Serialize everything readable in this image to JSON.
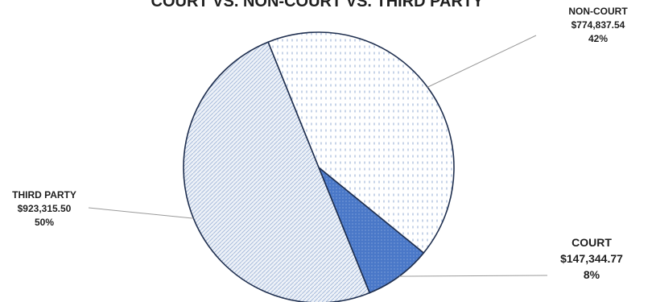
{
  "chart_data": {
    "type": "pie",
    "title": "COURT VS. NON-COURT VS. THIRD PARTY",
    "slices": [
      {
        "name": "NON-COURT",
        "amount": "$774,837.54",
        "value": 774837.54,
        "percent": "42%",
        "pattern": "dots"
      },
      {
        "name": "COURT",
        "amount": "$147,344.77",
        "value": 147344.77,
        "percent": "8%",
        "pattern": "solid"
      },
      {
        "name": "THIRD PARTY",
        "amount": "$923,315.50",
        "value": 923315.5,
        "percent": "50%",
        "pattern": "hatch"
      }
    ],
    "colors": {
      "outline": "#1f2f4f",
      "court_fill": "#4a78c8",
      "pattern_blue": "#8fa8d2",
      "leader": "#9a9a9a"
    }
  }
}
